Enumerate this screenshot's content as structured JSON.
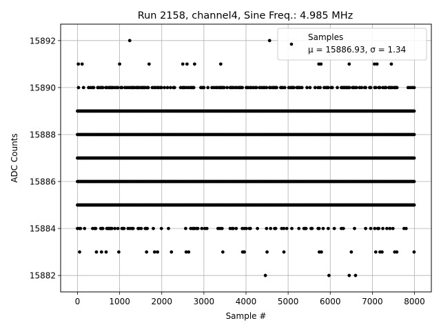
{
  "chart_data": {
    "type": "scatter",
    "title": "Run 2158, channel4, Sine Freq.: 4.985 MHz",
    "xlabel": "Sample #",
    "ylabel": "ADC Counts",
    "xlim": [
      -400,
      8400
    ],
    "ylim": [
      15881.3,
      15892.7
    ],
    "xticks": [
      0,
      1000,
      2000,
      3000,
      4000,
      5000,
      6000,
      7000,
      8000
    ],
    "yticks": [
      15882,
      15884,
      15886,
      15888,
      15890,
      15892
    ],
    "grid": true,
    "legend": {
      "placement": "top-right",
      "line1": "Samples",
      "line2": "μ = 15886.93, σ = 1.34"
    },
    "marker_color": "#000000",
    "n_samples": 8000,
    "dense_levels": [
      15885,
      15886,
      15887,
      15888,
      15889
    ],
    "band_15890_density": 0.55,
    "band_15884_density": 0.28,
    "outliers": [
      {
        "x": 20,
        "y": 15891
      },
      {
        "x": 110,
        "y": 15891
      },
      {
        "x": 1000,
        "y": 15891
      },
      {
        "x": 1700,
        "y": 15891
      },
      {
        "x": 2500,
        "y": 15891
      },
      {
        "x": 2600,
        "y": 15891
      },
      {
        "x": 2780,
        "y": 15891
      },
      {
        "x": 3400,
        "y": 15891
      },
      {
        "x": 5730,
        "y": 15891
      },
      {
        "x": 5780,
        "y": 15891
      },
      {
        "x": 6450,
        "y": 15891
      },
      {
        "x": 7050,
        "y": 15891
      },
      {
        "x": 7110,
        "y": 15891
      },
      {
        "x": 7450,
        "y": 15891
      },
      {
        "x": 1240,
        "y": 15892
      },
      {
        "x": 4560,
        "y": 15892
      },
      {
        "x": 50,
        "y": 15883
      },
      {
        "x": 450,
        "y": 15883
      },
      {
        "x": 570,
        "y": 15883
      },
      {
        "x": 680,
        "y": 15883
      },
      {
        "x": 980,
        "y": 15883
      },
      {
        "x": 1640,
        "y": 15883
      },
      {
        "x": 1830,
        "y": 15883
      },
      {
        "x": 1900,
        "y": 15883
      },
      {
        "x": 2230,
        "y": 15883
      },
      {
        "x": 2580,
        "y": 15883
      },
      {
        "x": 2640,
        "y": 15883
      },
      {
        "x": 3450,
        "y": 15883
      },
      {
        "x": 3920,
        "y": 15883
      },
      {
        "x": 3960,
        "y": 15883
      },
      {
        "x": 4500,
        "y": 15883
      },
      {
        "x": 4900,
        "y": 15883
      },
      {
        "x": 5740,
        "y": 15883
      },
      {
        "x": 5790,
        "y": 15883
      },
      {
        "x": 6500,
        "y": 15883
      },
      {
        "x": 7080,
        "y": 15883
      },
      {
        "x": 7180,
        "y": 15883
      },
      {
        "x": 7230,
        "y": 15883
      },
      {
        "x": 7530,
        "y": 15883
      },
      {
        "x": 7580,
        "y": 15883
      },
      {
        "x": 7990,
        "y": 15883
      },
      {
        "x": 4460,
        "y": 15882
      },
      {
        "x": 5970,
        "y": 15882
      },
      {
        "x": 6450,
        "y": 15882
      },
      {
        "x": 6600,
        "y": 15882
      }
    ]
  }
}
